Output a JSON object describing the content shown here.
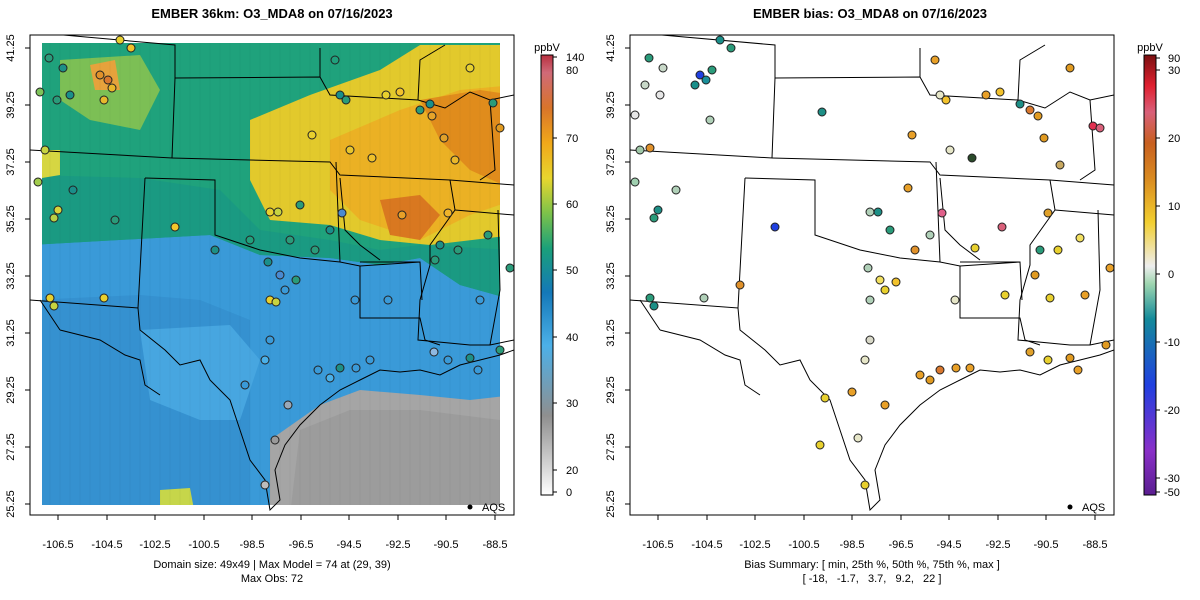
{
  "left_panel": {
    "title": "EMBER 36km: O3_MDA8 on 07/16/2023",
    "y_ticks": [
      "41.25",
      "39.25",
      "37.25",
      "35.25",
      "33.25",
      "31.25",
      "29.25",
      "27.25",
      "25.25"
    ],
    "x_ticks": [
      "-106.5",
      "-104.5",
      "-102.5",
      "-100.5",
      "-98.5",
      "-96.5",
      "-94.5",
      "-92.5",
      "-90.5",
      "-88.5"
    ],
    "footer_line1": "Domain size: 49x49 | Max Model = 74 at (29, 39)",
    "footer_line2": "Max Obs: 72",
    "legend_label": "AQS",
    "colorbar": {
      "unit": "ppbV",
      "ticks": [
        "140",
        "80",
        "70",
        "60",
        "50",
        "40",
        "30",
        "20",
        "0"
      ],
      "stops": [
        "#ffffff",
        "#9a9a9a",
        "#4ab0e6",
        "#2f8fd0",
        "#1ca38f",
        "#3bb86a",
        "#e8d62e",
        "#f0a81a",
        "#e07f14",
        "#d45a50",
        "#c83a4a"
      ]
    }
  },
  "right_panel": {
    "title": "EMBER bias: O3_MDA8 on 07/16/2023",
    "y_ticks": [
      "41.25",
      "39.25",
      "37.25",
      "35.25",
      "33.25",
      "31.25",
      "29.25",
      "27.25",
      "25.25"
    ],
    "x_ticks": [
      "-106.5",
      "-104.5",
      "-102.5",
      "-100.5",
      "-98.5",
      "-96.5",
      "-94.5",
      "-92.5",
      "-90.5",
      "-88.5"
    ],
    "footer_line1": "Bias Summary: [ min, 25th %, 50th %, 75th %, max ]",
    "footer_line2": "[ -18,   -1.7,   3.7,   9.2,   22 ]",
    "legend_label": "AQS",
    "colorbar": {
      "unit": "ppbV",
      "ticks": [
        "90",
        "30",
        "20",
        "10",
        "0",
        "-10",
        "-20",
        "-30",
        "-50"
      ],
      "stops": [
        "#7a1a1a",
        "#d8202a",
        "#e0308a",
        "#d97a20",
        "#f2cf30",
        "#ececec",
        "#1fa08a",
        "#1aa0a0",
        "#2040e0",
        "#7a30c0",
        "#5a1e90"
      ]
    }
  },
  "colors": {
    "border": "#000000",
    "ocean_bias": "#ffffff",
    "aqs_marker": "#000000"
  }
}
